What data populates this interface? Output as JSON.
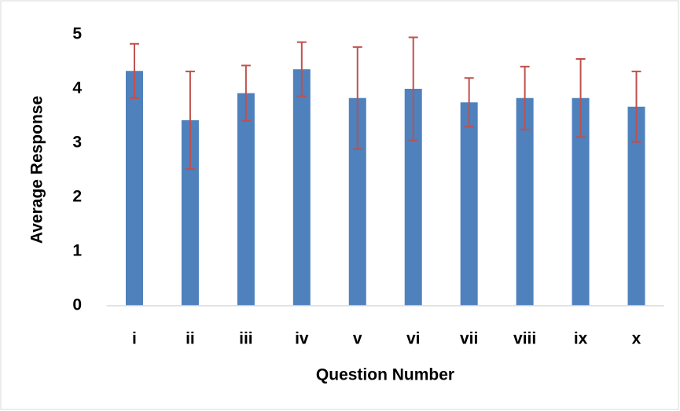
{
  "chart_data": {
    "type": "bar",
    "x_label": "Question Number",
    "y_label": "Average Response",
    "categories": [
      "i",
      "ii",
      "iii",
      "iv",
      "v",
      "vi",
      "vii",
      "viii",
      "ix",
      "x"
    ],
    "values": [
      4.33,
      3.42,
      3.92,
      4.36,
      3.83,
      4.0,
      3.75,
      3.83,
      3.83,
      3.67
    ],
    "errors": [
      0.5,
      0.9,
      0.51,
      0.5,
      0.94,
      0.95,
      0.45,
      0.58,
      0.72,
      0.65
    ],
    "color": "#4f81bd",
    "error_color": "#c0504d",
    "ylim": [
      0,
      5
    ],
    "yticks": [
      0,
      1,
      2,
      3,
      4,
      5
    ],
    "grid": false
  }
}
